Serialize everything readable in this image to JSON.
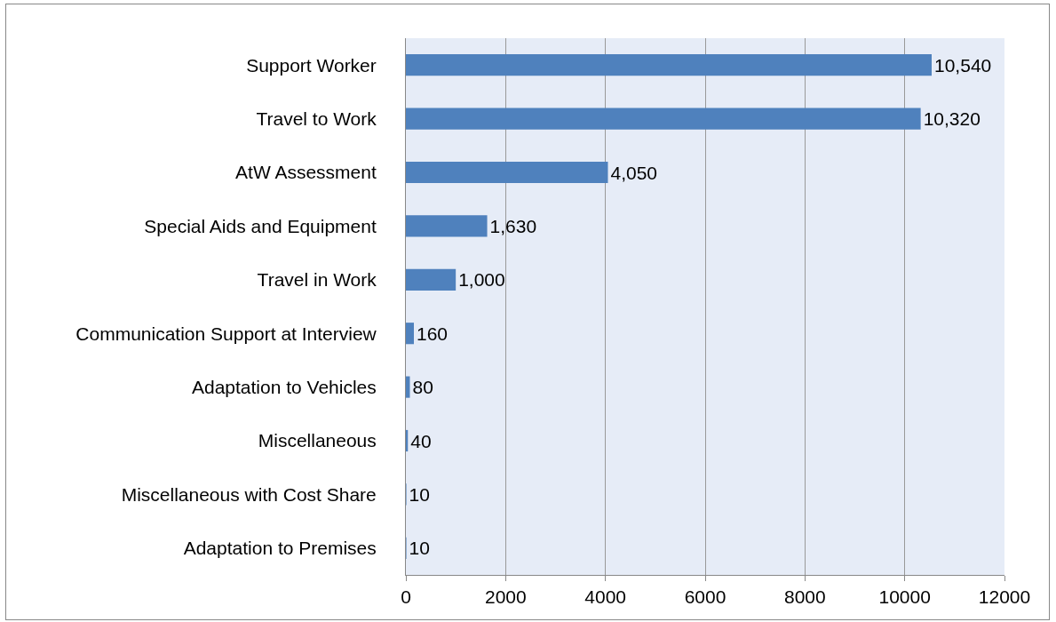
{
  "chart_data": {
    "type": "bar",
    "orientation": "horizontal",
    "categories": [
      "Support Worker",
      "Travel to Work",
      "AtW Assessment",
      "Special Aids and Equipment",
      "Travel in Work",
      "Communication Support at Interview",
      "Adaptation to Vehicles",
      "Miscellaneous",
      "Miscellaneous with Cost Share",
      "Adaptation to Premises"
    ],
    "values": [
      10540,
      10320,
      4050,
      1630,
      1000,
      160,
      80,
      40,
      10,
      10
    ],
    "value_labels": [
      "10,540",
      "10,320",
      "4,050",
      "1,630",
      "1,000",
      "160",
      "80",
      "40",
      "10",
      "10"
    ],
    "color": "#4f81bd",
    "xlim": [
      0,
      12000
    ],
    "xticks": [
      0,
      2000,
      4000,
      6000,
      8000,
      10000,
      12000
    ],
    "grid": "x"
  }
}
